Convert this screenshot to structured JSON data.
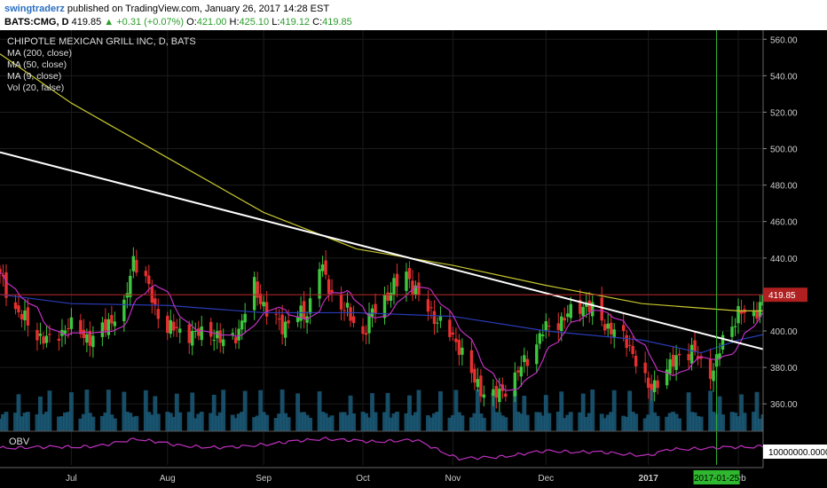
{
  "header": {
    "user": "swingtraderz",
    "published_text": "published on TradingView.com, January 26, 2017 14:28 EST",
    "symbol": "BATS:CMG, D",
    "last": "419.85",
    "change": "+0.31 (+0.07%)",
    "open_label": "O:",
    "open": "421.00",
    "high_label": "H:",
    "high": "425.10",
    "low_label": "L:",
    "low": "419.12",
    "close_label": "C:",
    "close": "419.85"
  },
  "legend": [
    "CHIPOTLE MEXICAN GRILL INC, D, BATS",
    "MA (200, close)",
    "MA (50, close)",
    "MA (9, close)",
    "Vol (20, false)"
  ],
  "obv_label": "OBV",
  "obv_value_label": "10000000.0000",
  "colors": {
    "up": "#3ec73e",
    "down": "#e53030",
    "ma200": "#c8c830",
    "ma50": "#2a3cb8",
    "ma9": "#c030c0",
    "trend": "#ffffff",
    "volume": "#1b5a78",
    "obv": "#c030c0",
    "price_line": "#b02020",
    "marker": "#2fb82f"
  },
  "chart_data": {
    "type": "candlestick",
    "title": "CHIPOTLE MEXICAN GRILL INC, D, BATS",
    "y_ticks": [
      360,
      380,
      400,
      420,
      440,
      460,
      480,
      500,
      520,
      540,
      560
    ],
    "y_tick_labels": [
      "360.00",
      "380.00",
      "400.00",
      "420.00",
      "440.00",
      "460.00",
      "480.00",
      "500.00",
      "520.00",
      "540.00",
      "560.00"
    ],
    "ylim": [
      345,
      565
    ],
    "x_range": [
      "2016-06-08",
      "2017-02-09"
    ],
    "x_ticks": [
      {
        "label": "Jul",
        "date": "2016-07-01"
      },
      {
        "label": "Aug",
        "date": "2016-08-01"
      },
      {
        "label": "Sep",
        "date": "2016-09-01"
      },
      {
        "label": "Oct",
        "date": "2016-10-03"
      },
      {
        "label": "Nov",
        "date": "2016-11-01"
      },
      {
        "label": "Dec",
        "date": "2016-12-01"
      },
      {
        "label": "2017",
        "date": "2017-01-03"
      },
      {
        "label": "Feb",
        "date": "2017-02-01"
      }
    ],
    "price_line": {
      "value": 419.85,
      "label": "419.85"
    },
    "marker": {
      "date": "2017-01-25",
      "label": "2017-01-25"
    },
    "price_anchors": [
      [
        "2016-06-08",
        430
      ],
      [
        "2016-06-13",
        412
      ],
      [
        "2016-06-20",
        398
      ],
      [
        "2016-06-24",
        394
      ],
      [
        "2016-06-30",
        403
      ],
      [
        "2016-07-05",
        398
      ],
      [
        "2016-07-08",
        395
      ],
      [
        "2016-07-13",
        405
      ],
      [
        "2016-07-18",
        412
      ],
      [
        "2016-07-21",
        440
      ],
      [
        "2016-07-25",
        428
      ],
      [
        "2016-07-28",
        412
      ],
      [
        "2016-08-01",
        402
      ],
      [
        "2016-08-05",
        400
      ],
      [
        "2016-08-10",
        398
      ],
      [
        "2016-08-15",
        400
      ],
      [
        "2016-08-19",
        393
      ],
      [
        "2016-08-24",
        400
      ],
      [
        "2016-08-29",
        425
      ],
      [
        "2016-09-02",
        410
      ],
      [
        "2016-09-07",
        403
      ],
      [
        "2016-09-12",
        408
      ],
      [
        "2016-09-15",
        410
      ],
      [
        "2016-09-19",
        437
      ],
      [
        "2016-09-23",
        420
      ],
      [
        "2016-09-28",
        410
      ],
      [
        "2016-10-03",
        398
      ],
      [
        "2016-10-06",
        410
      ],
      [
        "2016-10-12",
        422
      ],
      [
        "2016-10-17",
        432
      ],
      [
        "2016-10-21",
        418
      ],
      [
        "2016-10-26",
        408
      ],
      [
        "2016-10-31",
        398
      ],
      [
        "2016-11-03",
        392
      ],
      [
        "2016-11-08",
        372
      ],
      [
        "2016-11-12",
        365
      ],
      [
        "2016-11-16",
        365
      ],
      [
        "2016-11-21",
        375
      ],
      [
        "2016-11-25",
        385
      ],
      [
        "2016-11-30",
        400
      ],
      [
        "2016-12-05",
        405
      ],
      [
        "2016-12-09",
        410
      ],
      [
        "2016-12-14",
        415
      ],
      [
        "2016-12-19",
        405
      ],
      [
        "2016-12-23",
        400
      ],
      [
        "2016-12-28",
        392
      ],
      [
        "2017-01-03",
        368
      ],
      [
        "2017-01-06",
        373
      ],
      [
        "2017-01-10",
        380
      ],
      [
        "2017-01-13",
        388
      ],
      [
        "2017-01-18",
        388
      ],
      [
        "2017-01-21",
        380
      ],
      [
        "2017-01-24",
        378
      ],
      [
        "2017-01-27",
        395
      ],
      [
        "2017-02-01",
        410
      ],
      [
        "2017-02-06",
        408
      ],
      [
        "2017-02-09",
        419.85
      ]
    ],
    "ma200": [
      [
        "2016-06-08",
        552
      ],
      [
        "2016-07-01",
        525
      ],
      [
        "2016-08-01",
        495
      ],
      [
        "2016-09-01",
        465
      ],
      [
        "2016-10-01",
        445
      ],
      [
        "2016-11-01",
        436
      ],
      [
        "2016-12-01",
        425
      ],
      [
        "2017-01-01",
        415
      ],
      [
        "2017-02-01",
        411
      ],
      [
        "2017-02-09",
        411
      ]
    ],
    "ma50": [
      [
        "2016-06-08",
        420
      ],
      [
        "2016-07-01",
        415
      ],
      [
        "2016-08-01",
        414
      ],
      [
        "2016-09-01",
        410
      ],
      [
        "2016-10-01",
        410
      ],
      [
        "2016-11-01",
        408
      ],
      [
        "2016-12-01",
        400
      ],
      [
        "2017-01-01",
        395
      ],
      [
        "2017-01-20",
        388
      ],
      [
        "2017-02-01",
        395
      ],
      [
        "2017-02-09",
        398
      ]
    ],
    "trendline": [
      [
        "2016-06-08",
        498
      ],
      [
        "2017-02-09",
        390
      ]
    ],
    "obv_anchors": [
      [
        "2016-06-08",
        0.55
      ],
      [
        "2016-07-10",
        0.6
      ],
      [
        "2016-07-22",
        0.85
      ],
      [
        "2016-08-05",
        0.62
      ],
      [
        "2016-08-20",
        0.55
      ],
      [
        "2016-09-05",
        0.7
      ],
      [
        "2016-09-20",
        0.85
      ],
      [
        "2016-10-05",
        0.75
      ],
      [
        "2016-10-20",
        0.8
      ],
      [
        "2016-11-03",
        0.2
      ],
      [
        "2016-11-15",
        0.25
      ],
      [
        "2016-12-01",
        0.45
      ],
      [
        "2016-12-20",
        0.4
      ],
      [
        "2017-01-03",
        0.3
      ],
      [
        "2017-01-10",
        0.5
      ],
      [
        "2017-01-25",
        0.55
      ],
      [
        "2017-02-09",
        0.6
      ]
    ]
  }
}
